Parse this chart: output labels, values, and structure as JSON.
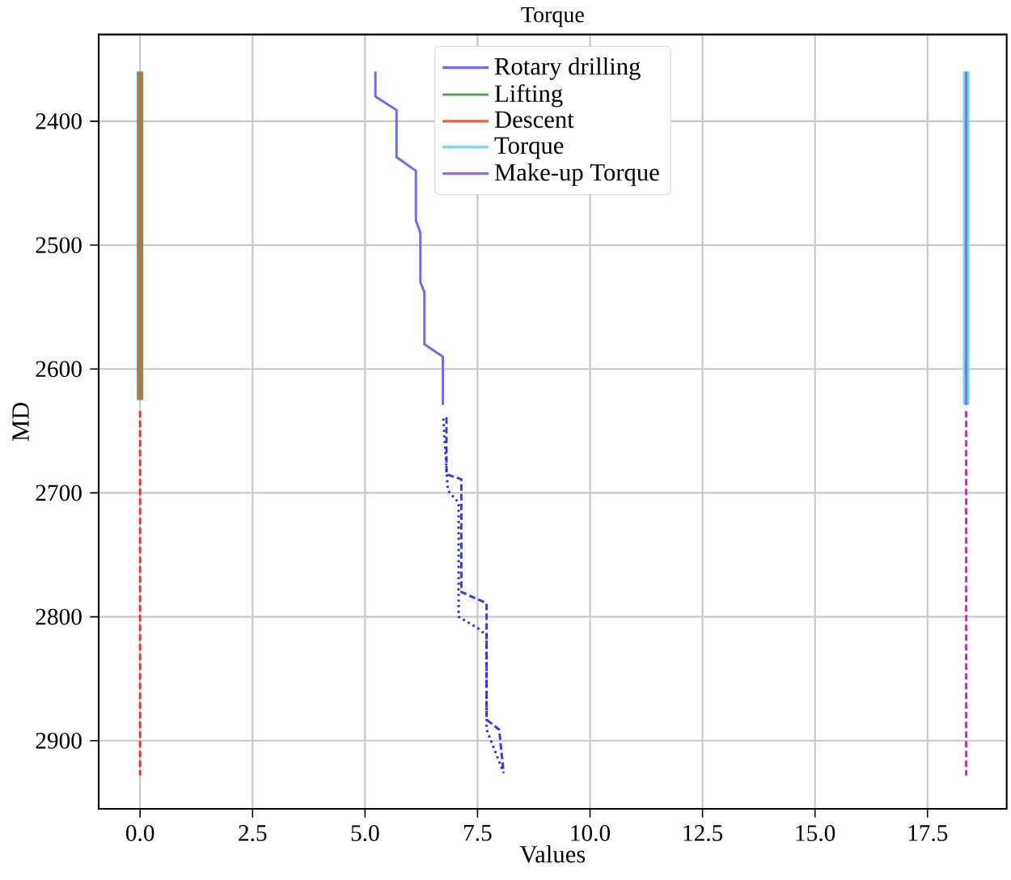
{
  "chart_data": {
    "type": "line",
    "title": "Torque",
    "xlabel": "Values",
    "ylabel": "MD",
    "xlim": [
      -0.92,
      19.26
    ],
    "ylim": [
      2955,
      2330
    ],
    "xticks": [
      {
        "value": 0,
        "label": "0.0"
      },
      {
        "value": 2.5,
        "label": "2.5"
      },
      {
        "value": 5,
        "label": "5.0"
      },
      {
        "value": 7.5,
        "label": "7.5"
      },
      {
        "value": 10,
        "label": "10.0"
      },
      {
        "value": 12.5,
        "label": "12.5"
      },
      {
        "value": 15,
        "label": "15.0"
      },
      {
        "value": 17.5,
        "label": "17.5"
      }
    ],
    "yticks": [
      2400,
      2500,
      2600,
      2700,
      2800,
      2900
    ],
    "grid": true,
    "legend": "top",
    "marker": "none",
    "series": [
      {
        "name": "Rotary drilling",
        "color": "#6a6af2",
        "line_style": "solid",
        "x": [
          5.23,
          5.23,
          5.7,
          5.7,
          6.13,
          6.13,
          6.23,
          6.23,
          6.32,
          6.32,
          6.73,
          6.73
        ],
        "values": [
          2360,
          2380,
          2391,
          2429,
          2440,
          2480,
          2490,
          2530,
          2538,
          2580,
          2590,
          2629
        ]
      },
      {
        "name": "Lifting",
        "color": "#5aa05a",
        "line_style": "solid",
        "x": [
          0,
          0
        ],
        "values": [
          2360,
          2625
        ]
      },
      {
        "name": "Descent",
        "color": "#e8603c",
        "line_style": "solid",
        "x": [
          0,
          0
        ],
        "values": [
          2360,
          2625
        ]
      },
      {
        "name": "Torque",
        "color": "#6fdcdc",
        "line_style": "solid",
        "x": [
          18.36,
          18.36
        ],
        "values": [
          2360,
          2629
        ]
      },
      {
        "name": "Make-up Torque",
        "color": "#9a66e0",
        "line_style": "solid",
        "x": [
          18.36,
          18.36
        ],
        "values": [
          2360,
          2629
        ]
      },
      {
        "color": "#3a3ae0",
        "line_style": "dashed",
        "x": [
          6.81,
          6.81,
          7.14,
          7.14,
          7.7,
          7.7,
          7.98,
          8.08
        ],
        "values": [
          2639,
          2685,
          2689,
          2780,
          2789,
          2883,
          2891,
          2926
        ]
      },
      {
        "color": "#2a2ad8",
        "line_style": "dotted",
        "x": [
          6.74,
          6.84,
          7.08,
          7.08,
          7.5,
          7.7,
          7.7,
          8.08
        ],
        "values": [
          2640,
          2698,
          2708,
          2800,
          2809,
          2815,
          2891,
          2926
        ]
      },
      {
        "color": "#f03030",
        "line_style": "dashed",
        "x": [
          0,
          0
        ],
        "values": [
          2634,
          2928
        ]
      },
      {
        "color": "#cc22cc",
        "line_style": "dashed",
        "x": [
          18.36,
          18.36
        ],
        "values": [
          2634,
          2928
        ]
      }
    ]
  }
}
